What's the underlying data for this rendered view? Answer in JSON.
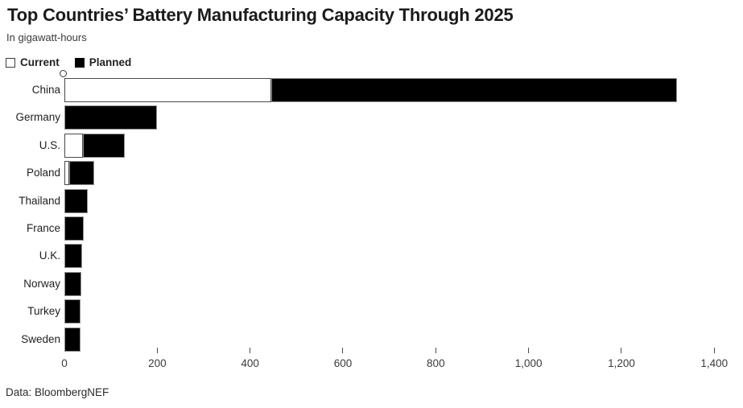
{
  "chart_data": {
    "type": "bar",
    "orientation": "horizontal",
    "stacked": true,
    "title": "Top Countries’ Battery Manufacturing Capacity Through 2025",
    "subtitle": "In gigawatt-hours",
    "source": "Data: BloombergNEF",
    "unit": "gigawatt-hours",
    "categories": [
      "China",
      "Germany",
      "U.S.",
      "Poland",
      "Thailand",
      "France",
      "U.K.",
      "Norway",
      "Turkey",
      "Sweden"
    ],
    "series": [
      {
        "name": "Current",
        "fill": "#ffffff",
        "border": "#4a4a4a",
        "values": [
          445,
          0,
          40,
          10,
          0,
          0,
          0,
          0,
          0,
          0
        ]
      },
      {
        "name": "Planned",
        "fill": "#000000",
        "border": "#8f8f8f",
        "values": [
          875,
          200,
          90,
          55,
          50,
          41,
          38,
          36,
          35,
          34
        ]
      }
    ],
    "totals": [
      1320,
      200,
      130,
      65,
      50,
      41,
      38,
      36,
      35,
      34
    ],
    "xlim": [
      0,
      1400
    ],
    "xticks": [
      0,
      200,
      400,
      600,
      800,
      1000,
      1200,
      1400
    ],
    "xtick_labels": [
      "0",
      "200",
      "400",
      "600",
      "800",
      "1,000",
      "1,200",
      "1,400"
    ],
    "legend_position": "top-left",
    "grid": false,
    "colors": {
      "title_text": "#1b1b1b",
      "subtitle_text": "#3a3a3a",
      "axis_text": "#3b3b3b",
      "label_text": "#1f1f1f",
      "background": "#ffffff"
    }
  }
}
